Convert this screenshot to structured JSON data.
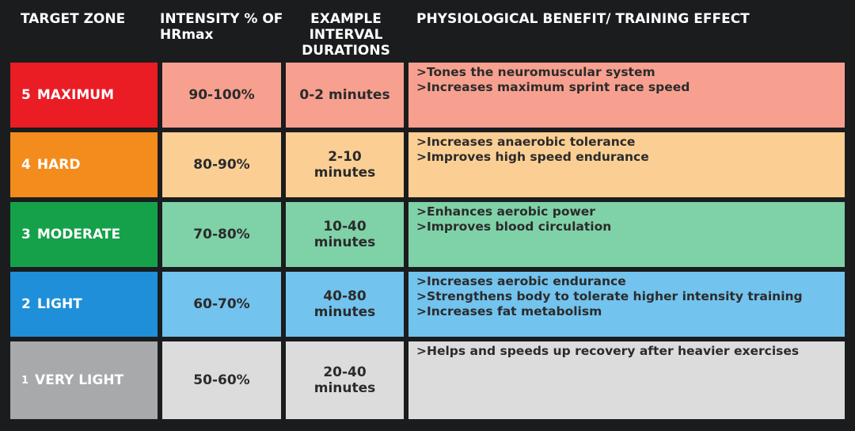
{
  "headers": {
    "zone": "TARGET ZONE",
    "intensity": "INTENSITY % OF HRmax",
    "duration": "EXAMPLE INTERVAL DURATIONS",
    "benefit": "PHYSIOLOGICAL BENEFIT/ TRAINING EFFECT"
  },
  "rows": [
    {
      "zone_num": "5",
      "zone_name": "MAXIMUM",
      "intensity": "90-100%",
      "duration": "0-2 minutes",
      "benefits": [
        ">Tones the neuromuscular system",
        ">Increases maximum sprint race speed"
      ],
      "colors": {
        "zone": "#ea1c24",
        "cell": "#f7a090",
        "benefit": "#f7a090"
      }
    },
    {
      "zone_num": "4",
      "zone_name": "HARD",
      "intensity": "80-90%",
      "duration": "2-10 minutes",
      "benefits": [
        ">Increases anaerobic tolerance",
        ">Improves high speed endurance"
      ],
      "colors": {
        "zone": "#f38c1d",
        "cell": "#fbcf94",
        "benefit": "#fbcf94"
      }
    },
    {
      "zone_num": "3",
      "zone_name": "MODERATE",
      "intensity": "70-80%",
      "duration": "10-40 minutes",
      "benefits": [
        ">Enhances aerobic power",
        ">Improves blood circulation"
      ],
      "colors": {
        "zone": "#15a14a",
        "cell": "#7fd1a8",
        "benefit": "#7fd1a8"
      }
    },
    {
      "zone_num": "2",
      "zone_name": "LIGHT",
      "intensity": "60-70%",
      "duration": "40-80 minutes",
      "benefits": [
        ">Increases aerobic endurance",
        ">Strengthens body to tolerate higher intensity training",
        ">Increases fat metabolism"
      ],
      "colors": {
        "zone": "#1e8fd8",
        "cell": "#72c3ee",
        "benefit": "#72c3ee"
      }
    },
    {
      "zone_num": "1",
      "zone_name": "VERY LIGHT",
      "intensity": "50-60%",
      "duration": "20-40 minutes",
      "benefits": [
        ">Helps and speeds up recovery after heavier exercises"
      ],
      "colors": {
        "zone": "#a7a9ab",
        "cell": "#dcdcdc",
        "benefit": "#dcdcdc"
      }
    }
  ]
}
